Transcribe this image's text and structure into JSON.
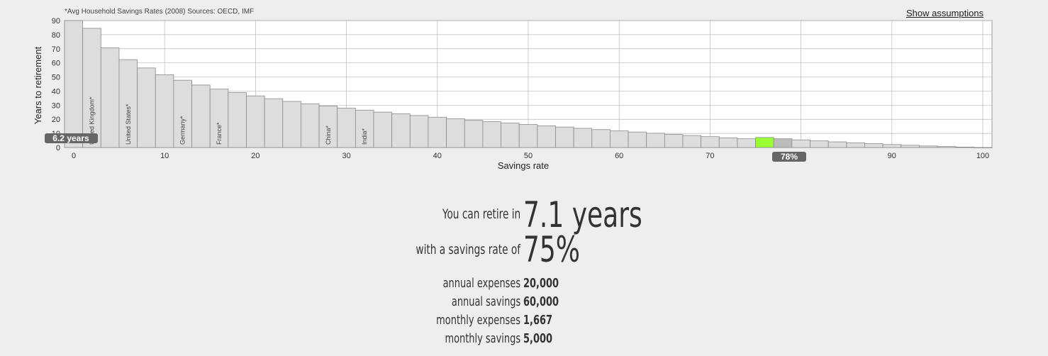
{
  "header": {
    "source_note": "*Avg Household Savings Rates (2008) Sources: OECD, IMF",
    "show_assumptions": "Show assumptions"
  },
  "chart_data": {
    "type": "bar",
    "xlabel": "Savings rate",
    "ylabel": "Years to retirement",
    "xlim": [
      0,
      100
    ],
    "ylim": [
      0,
      90
    ],
    "x_ticks": [
      "0",
      "10",
      "20",
      "30",
      "40",
      "50",
      "60",
      "70",
      "80",
      "90",
      "100"
    ],
    "y_ticks": [
      "0",
      "10",
      "20",
      "30",
      "40",
      "50",
      "60",
      "70",
      "80",
      "90"
    ],
    "categories": [
      0,
      2,
      4,
      6,
      8,
      10,
      12,
      14,
      16,
      18,
      20,
      22,
      24,
      26,
      28,
      30,
      32,
      34,
      36,
      38,
      40,
      42,
      44,
      46,
      48,
      50,
      52,
      54,
      56,
      58,
      60,
      62,
      64,
      66,
      68,
      70,
      72,
      74,
      76,
      78,
      80,
      82,
      84,
      86,
      88,
      90,
      92,
      94,
      96,
      98,
      100
    ],
    "values": [
      90,
      84.5,
      70.6,
      62.3,
      56.4,
      51.6,
      47.7,
      44.3,
      41.4,
      38.9,
      36.6,
      34.6,
      32.7,
      31.0,
      29.4,
      27.9,
      26.5,
      25.1,
      23.9,
      22.7,
      21.5,
      20.4,
      19.3,
      18.3,
      17.3,
      16.3,
      15.4,
      14.5,
      13.6,
      12.7,
      11.8,
      11.0,
      10.1,
      9.3,
      8.5,
      7.7,
      6.9,
      6.2,
      7.1,
      6.2,
      5.4,
      4.7,
      4.0,
      3.3,
      2.7,
      2.1,
      1.6,
      1.1,
      0.7,
      0.3,
      0
    ],
    "highlight_selected_rate": 76,
    "highlight_hover_rate": 78,
    "colors": {
      "bar": "#dddddd",
      "bar_stroke": "#8a8a8a",
      "selected": "#99ff33",
      "hover": "#bbbbbb",
      "grid": "#b9b9b9",
      "badge": "#666666"
    },
    "annotations": [
      {
        "rate": 2,
        "text": "United Kingdom*"
      },
      {
        "rate": 6,
        "text": "United States*"
      },
      {
        "rate": 12,
        "text": "Germany*"
      },
      {
        "rate": 16,
        "text": "France*"
      },
      {
        "rate": 28,
        "text": "China*"
      },
      {
        "rate": 32,
        "text": "India*"
      }
    ],
    "y_badge": "6.2 years",
    "x_badge": "78%"
  },
  "result": {
    "retire_label": "You can retire in",
    "retire_value": "7.1 years",
    "rate_label": "with a savings rate of",
    "rate_value": "75%",
    "stats": [
      {
        "label": "annual expenses",
        "value": "20,000"
      },
      {
        "label": "annual savings",
        "value": "60,000"
      },
      {
        "label": "monthly expenses",
        "value": "1,667"
      },
      {
        "label": "monthly savings",
        "value": "5,000"
      }
    ]
  }
}
